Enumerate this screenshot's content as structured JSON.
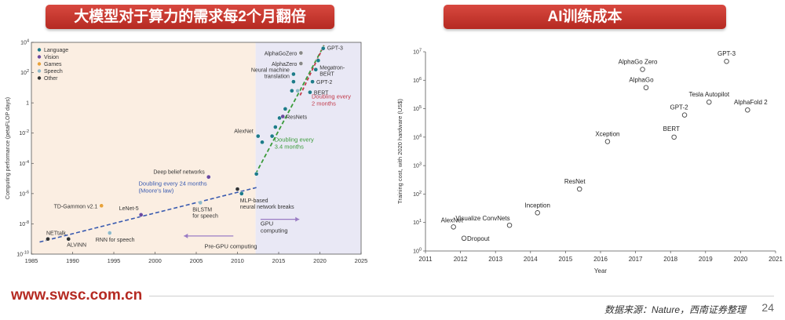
{
  "banners": {
    "left": "大模型对于算力的需求每2个月翻倍",
    "right": "AI训练成本"
  },
  "chart_left": {
    "type": "scatter",
    "y_scale": "log",
    "ylabel": "Computing performance (petaFLOP days)",
    "xlim": [
      1985,
      2025
    ],
    "ylim_exponent": [
      -10,
      4
    ],
    "x_ticks": [
      "1985",
      "1990",
      "1995",
      "2000",
      "2005",
      "2010",
      "2015",
      "2020",
      "2025"
    ],
    "y_ticks": [
      "10^-10",
      "10^-8",
      "10^-6",
      "10^-4",
      "10^-2",
      "1",
      "10^2",
      "10^4"
    ],
    "legend": [
      "Language",
      "Vision",
      "Games",
      "Speech",
      "Other"
    ],
    "legend_colors": [
      "#1e7b8a",
      "#6b4aa0",
      "#e8a23b",
      "#8fb9c8",
      "#333333"
    ],
    "region_labels": [
      "Pre-GPU computing",
      "GPU computing"
    ],
    "trend_annotations": [
      {
        "text": "Doubling every 24 months",
        "subtext": "(Moore's law)",
        "color": "#3a5bb0"
      },
      {
        "text": "Doubling every",
        "subtext": "3.4 months",
        "color": "#3a9b3a"
      },
      {
        "text": "Doubling every",
        "subtext": "2 months",
        "color": "#c23a4a"
      }
    ],
    "points": [
      {
        "label": "NETtalk",
        "year": 1987,
        "exp": -9.0
      },
      {
        "label": "ALVINN",
        "year": 1989.5,
        "exp": -9.0
      },
      {
        "label": "TD-Gammon v2.1",
        "year": 1993.5,
        "exp": -6.8
      },
      {
        "label": "RNN for speech",
        "year": 1994.5,
        "exp": -8.6
      },
      {
        "label": "LeNet-5",
        "year": 1998.3,
        "exp": -7.4
      },
      {
        "label": "BiLSTM for speech",
        "year": 2005.5,
        "exp": -6.6
      },
      {
        "label": "Deep belief networks",
        "year": 2006.5,
        "exp": -4.9
      },
      {
        "label": "",
        "year": 2010,
        "exp": -5.7
      },
      {
        "label": "MLP-based neural network breaks",
        "year": 2010.5,
        "exp": -6.0
      },
      {
        "label": "",
        "year": 2012.3,
        "exp": -4.7
      },
      {
        "label": "AlexNet",
        "year": 2012.5,
        "exp": -2.2
      },
      {
        "label": "",
        "year": 2013,
        "exp": -2.6
      },
      {
        "label": "",
        "year": 2014.2,
        "exp": -2.2
      },
      {
        "label": "",
        "year": 2014.6,
        "exp": -1.6
      },
      {
        "label": "",
        "year": 2015.1,
        "exp": -1.0
      },
      {
        "label": "ResNets",
        "year": 2015.5,
        "exp": -0.9
      },
      {
        "label": "",
        "year": 2015.8,
        "exp": -0.4
      },
      {
        "label": "Neural machine translation",
        "year": 2016.8,
        "exp": 1.9
      },
      {
        "label": "",
        "year": 2016.8,
        "exp": 1.4
      },
      {
        "label": "",
        "year": 2016.6,
        "exp": 0.8
      },
      {
        "label": "",
        "year": 2017.3,
        "exp": 0.8
      },
      {
        "label": "AlphaGoZero",
        "year": 2017.7,
        "exp": 3.3
      },
      {
        "label": "AlphaZero",
        "year": 2017.7,
        "exp": 2.6
      },
      {
        "label": "BERT",
        "year": 2018.8,
        "exp": 0.7
      },
      {
        "label": "GPT-2",
        "year": 2019.1,
        "exp": 1.4
      },
      {
        "label": "Megatron-BERT",
        "year": 2019.5,
        "exp": 2.2
      },
      {
        "label": "",
        "year": 2019.8,
        "exp": 2.8
      },
      {
        "label": "GPT-3",
        "year": 2020.4,
        "exp": 3.6
      }
    ],
    "point_colors": [
      "#333333",
      "#333333",
      "#e8a23b",
      "#8fb9c8",
      "#6b4aa0",
      "#8fb9c8",
      "#6b4aa0",
      "#333333",
      "#1e7b8a",
      "#1e7b8a",
      "#1e7b8a",
      "#1e7b8a",
      "#1e7b8a",
      "#1e7b8a",
      "#1e7b8a",
      "#6b4aa0",
      "#1e7b8a",
      "#1e7b8a",
      "#1e7b8a",
      "#1e7b8a",
      "#8fb9c8",
      "#888888",
      "#888888",
      "#1e7b8a",
      "#1e7b8a",
      "#1e7b8a",
      "#1e7b8a",
      "#1e7b8a"
    ]
  },
  "chart_right": {
    "type": "scatter",
    "y_scale": "log",
    "ylabel": "Training cost, with 2020 hardware (US$)",
    "xlabel": "Year",
    "xlim": [
      2011,
      2021
    ],
    "ylim_exponent": [
      0,
      7
    ],
    "x_ticks": [
      "2011",
      "2012",
      "2013",
      "2014",
      "2015",
      "2016",
      "2017",
      "2018",
      "2019",
      "2020",
      "2021"
    ],
    "y_ticks": [
      "10^0",
      "10^1",
      "10^2",
      "10^3",
      "10^4",
      "10^5",
      "10^6",
      "10^7"
    ],
    "points": [
      {
        "label": "AlexNet",
        "year": 2011.8,
        "cost": 7
      },
      {
        "label": "Dropout",
        "year": 2012.1,
        "cost": 2.8
      },
      {
        "label": "Visualize ConvNets",
        "year": 2013.4,
        "cost": 8
      },
      {
        "label": "Inception",
        "year": 2014.2,
        "cost": 22
      },
      {
        "label": "ResNet",
        "year": 2015.4,
        "cost": 150
      },
      {
        "label": "Xception",
        "year": 2016.2,
        "cost": 7000
      },
      {
        "label": "AlphaGo Zero",
        "year": 2017.2,
        "cost": 2400000
      },
      {
        "label": "AlphaGo",
        "year": 2017.3,
        "cost": 550000
      },
      {
        "label": "BERT",
        "year": 2018.1,
        "cost": 10000
      },
      {
        "label": "GPT-2",
        "year": 2018.4,
        "cost": 60000
      },
      {
        "label": "Tesla Autopilot",
        "year": 2019.1,
        "cost": 170000
      },
      {
        "label": "GPT-3",
        "year": 2019.6,
        "cost": 4600000
      },
      {
        "label": "AlphaFold 2",
        "year": 2020.2,
        "cost": 90000
      }
    ]
  },
  "footer": {
    "url": "www.swsc.com.cn",
    "source": "数据来源：Nature，西南证券整理",
    "page": "24"
  }
}
